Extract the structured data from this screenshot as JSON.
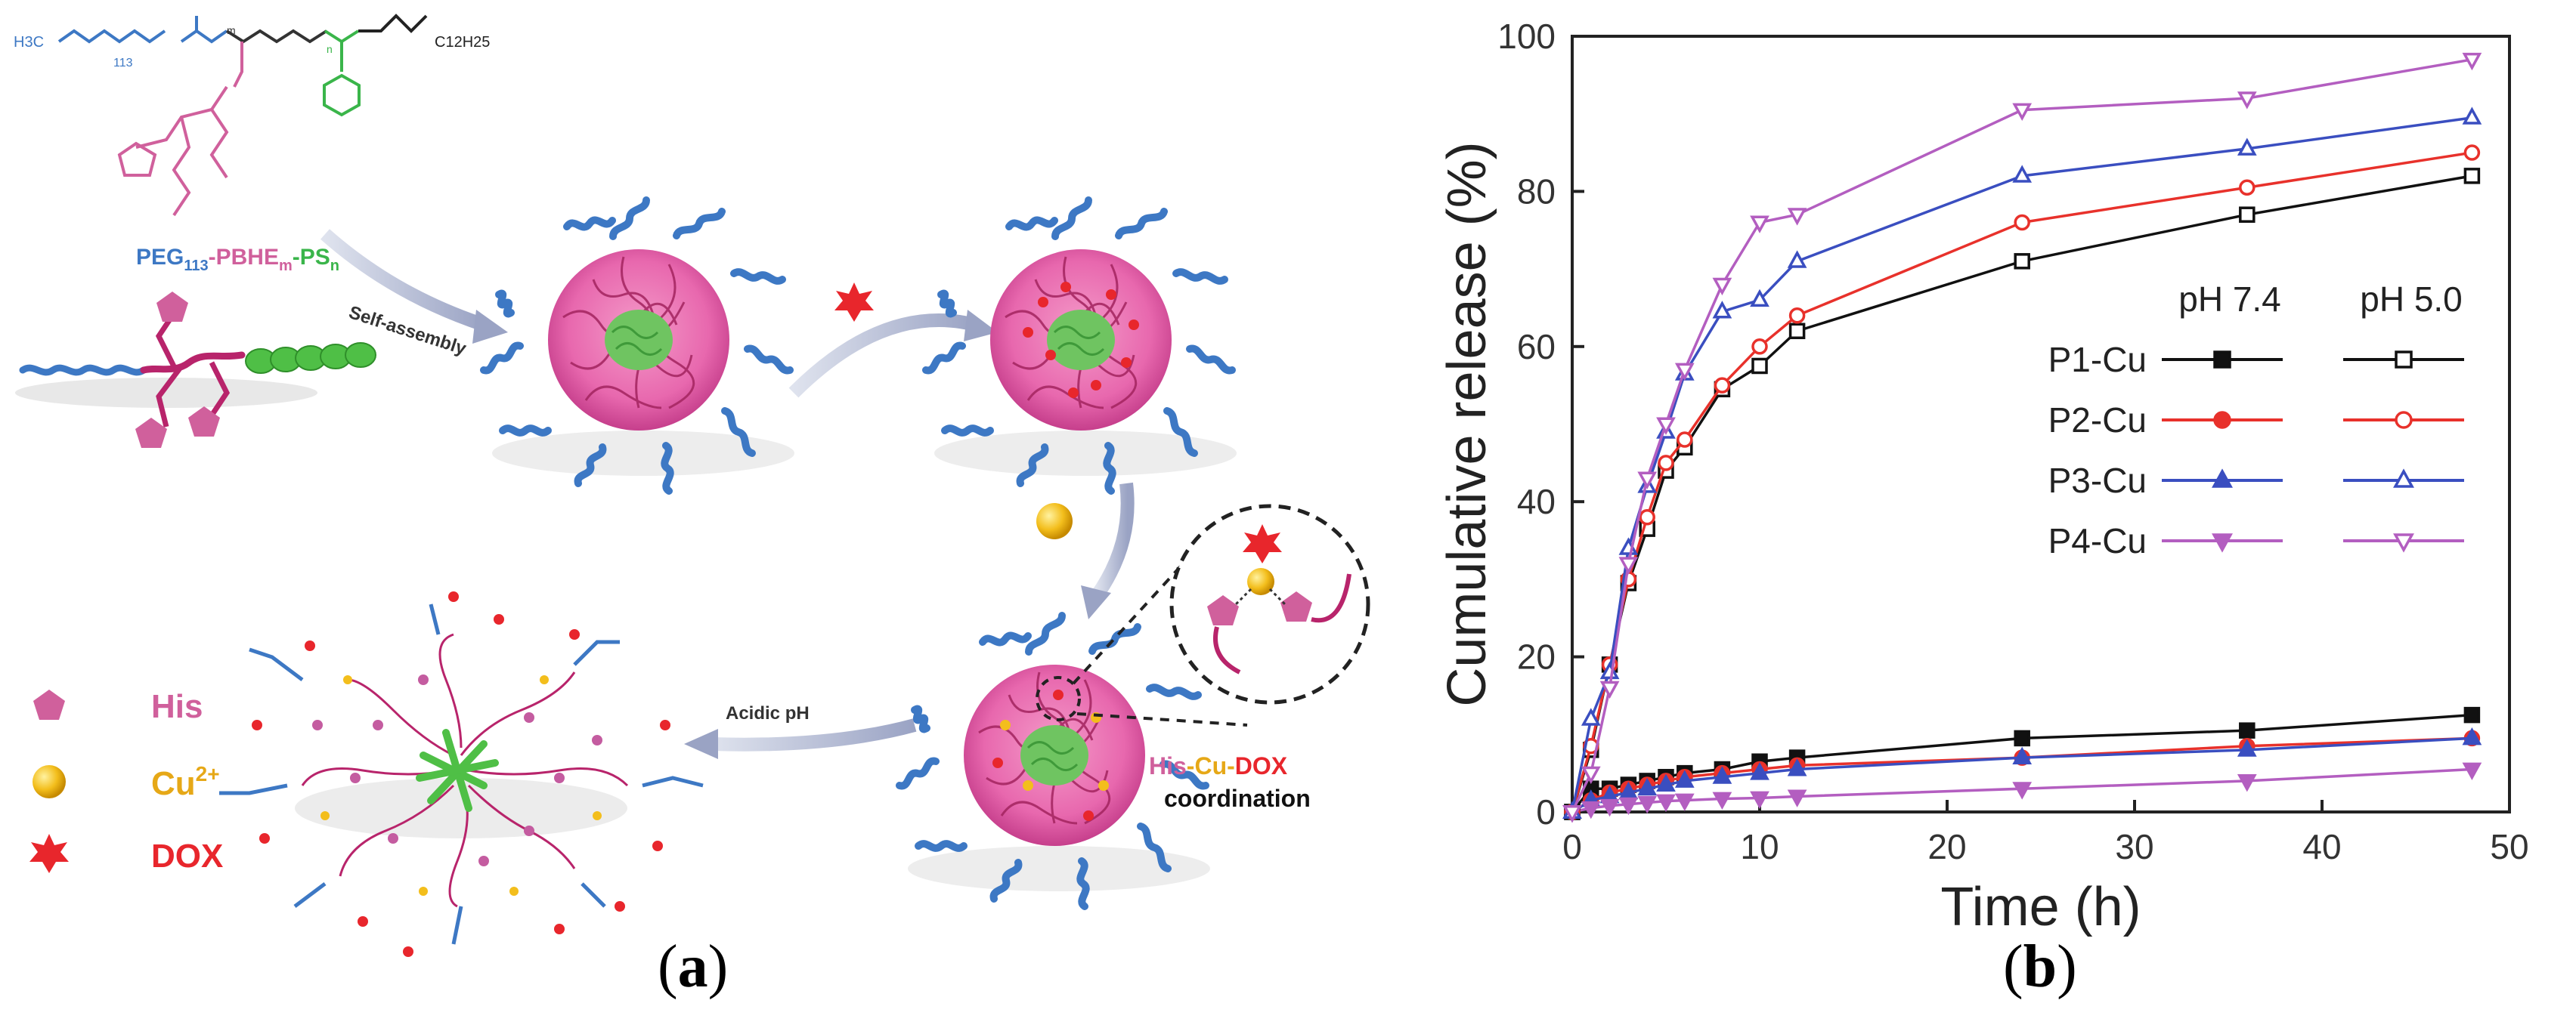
{
  "panel_a": {
    "formula_head": "H3C",
    "formula_peg_sub": "113",
    "formula_m": "m",
    "formula_n": "n",
    "formula_tail": "C12H25",
    "polymer_label": {
      "peg": "PEG",
      "peg_sub": "113",
      "pbhe": "-PBHE",
      "pbhe_sub": "m",
      "ps": "-PS",
      "ps_sub": "n"
    },
    "step_self_assembly": "Self-assembly",
    "step_acidic": "Acidic pH",
    "coordination": {
      "his": "His",
      "cu": "-Cu-",
      "dox": "DOX",
      "word": "coordination"
    },
    "legend": [
      {
        "name": "His",
        "color": "#d0609c"
      },
      {
        "name": "Cu",
        "sup": "2+",
        "color": "#e6a817"
      },
      {
        "name": "DOX",
        "color": "#e8262c"
      }
    ],
    "caption_letter": "a"
  },
  "chart_data": {
    "type": "line",
    "xlabel": "Time (h)",
    "ylabel": "Cumulative release (%)",
    "xlim": [
      0,
      50
    ],
    "ylim": [
      0,
      100
    ],
    "xticks": [
      0,
      10,
      20,
      30,
      40,
      50
    ],
    "yticks": [
      0,
      20,
      40,
      60,
      80,
      100
    ],
    "legend_headers": [
      "pH 7.4",
      "pH 5.0"
    ],
    "legend_rows": [
      "P1-Cu",
      "P2-Cu",
      "P3-Cu",
      "P4-Cu"
    ],
    "legend_position": "center-right",
    "x": [
      0,
      1,
      2,
      3,
      4,
      5,
      6,
      8,
      10,
      12,
      24,
      36,
      48
    ],
    "series": [
      {
        "name": "P1-Cu",
        "ph": "7.4",
        "color": "#111111",
        "marker": "square",
        "filled": true,
        "values": [
          0,
          3,
          3,
          3.5,
          4,
          4.5,
          5,
          5.5,
          6.5,
          7,
          9.5,
          10.5,
          12.5
        ]
      },
      {
        "name": "P2-Cu",
        "ph": "7.4",
        "color": "#e8312b",
        "marker": "circle",
        "filled": true,
        "values": [
          0,
          1.5,
          2.5,
          3,
          3.5,
          4,
          4.5,
          5,
          5.5,
          6,
          7,
          8.5,
          9.5
        ]
      },
      {
        "name": "P3-Cu",
        "ph": "7.4",
        "color": "#3a4ec0",
        "marker": "triangle-up",
        "filled": true,
        "values": [
          0,
          1.5,
          2,
          2.5,
          3,
          3.5,
          4,
          4.5,
          5,
          5.5,
          7,
          8,
          9.5
        ]
      },
      {
        "name": "P4-Cu",
        "ph": "7.4",
        "color": "#b35ec0",
        "marker": "triangle-down",
        "filled": true,
        "values": [
          0,
          0.5,
          0.8,
          1,
          1.2,
          1.4,
          1.5,
          1.7,
          1.8,
          2,
          3,
          4,
          5.5
        ]
      },
      {
        "name": "P1-Cu",
        "ph": "5.0",
        "color": "#111111",
        "marker": "square",
        "filled": false,
        "values": [
          0,
          8,
          19,
          29.5,
          36.5,
          44,
          47,
          54.5,
          57.5,
          62,
          71,
          77,
          82
        ]
      },
      {
        "name": "P2-Cu",
        "ph": "5.0",
        "color": "#e8312b",
        "marker": "circle",
        "filled": false,
        "values": [
          0,
          8.5,
          19,
          30,
          38,
          45,
          48,
          55,
          60,
          64,
          76,
          80.5,
          85
        ]
      },
      {
        "name": "P3-Cu",
        "ph": "5.0",
        "color": "#3a4ec0",
        "marker": "triangle-up",
        "filled": false,
        "values": [
          0,
          12,
          18,
          34,
          42,
          49,
          56.5,
          64.5,
          66,
          71,
          82,
          85.5,
          89.5
        ]
      },
      {
        "name": "P4-Cu",
        "ph": "5.0",
        "color": "#b35ec0",
        "marker": "triangle-down",
        "filled": false,
        "values": [
          0,
          5,
          16,
          32,
          43,
          50,
          57,
          68,
          76,
          77,
          90.5,
          92,
          97
        ]
      }
    ],
    "caption_letter": "b"
  }
}
